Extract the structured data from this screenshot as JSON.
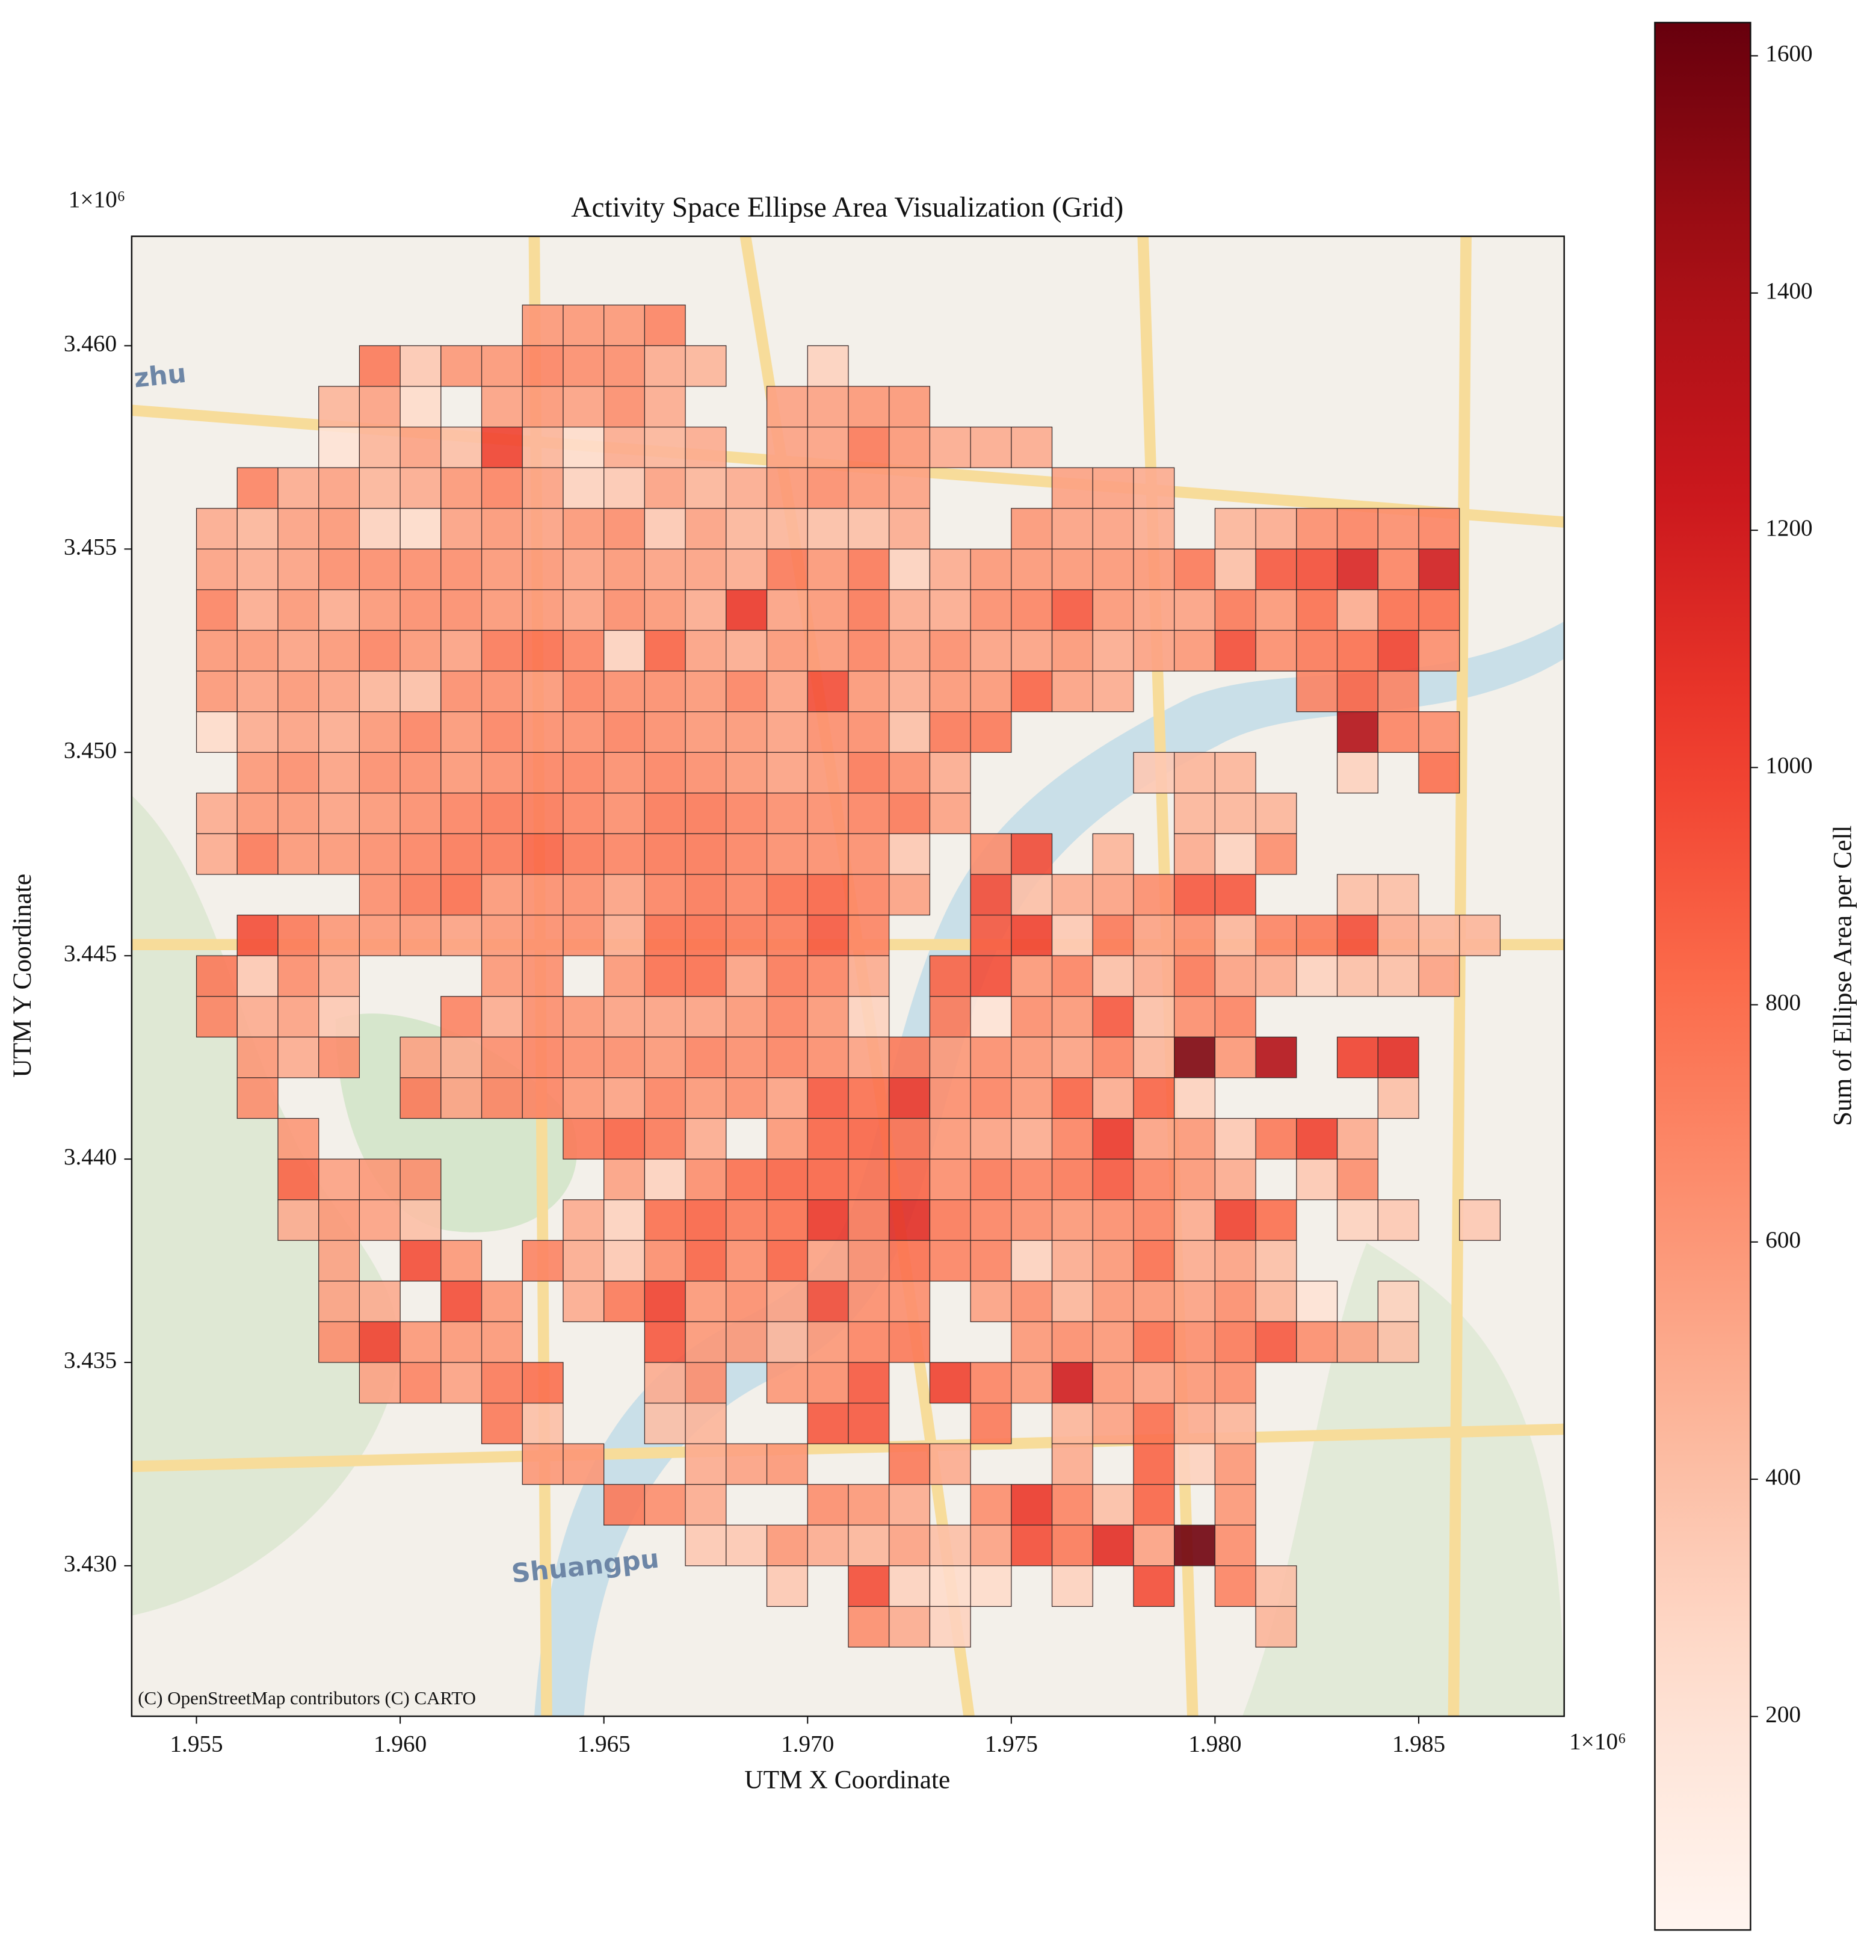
{
  "chart_data": {
    "type": "grid_heatmap",
    "title": "Activity Space Ellipse Area Visualization (Grid)",
    "x_label": "UTM X Coordinate",
    "y_label": "UTM Y Coordinate",
    "x_offset_label": "1×10⁶",
    "y_offset_label": "1×10⁶",
    "attribution": "(C) OpenStreetMap contributors (C) CARTO",
    "basemap_labels": [
      "Shuangpu",
      "zhu"
    ],
    "colorbar_label": "Sum of Ellipse Area per Cell",
    "colormap": "Reds",
    "clim": [
      20,
      1628
    ],
    "cticks": [
      200,
      400,
      600,
      800,
      1000,
      1200,
      1400,
      1600
    ],
    "xlim": [
      1953410,
      1988570
    ],
    "ylim": [
      3426300,
      3462690
    ],
    "xticks": [
      {
        "value": 1955000,
        "label": "1.955"
      },
      {
        "value": 1960000,
        "label": "1.960"
      },
      {
        "value": 1965000,
        "label": "1.965"
      },
      {
        "value": 1970000,
        "label": "1.970"
      },
      {
        "value": 1975000,
        "label": "1.975"
      },
      {
        "value": 1980000,
        "label": "1.980"
      },
      {
        "value": 1985000,
        "label": "1.985"
      }
    ],
    "yticks": [
      {
        "value": 3430000,
        "label": "3.430"
      },
      {
        "value": 3435000,
        "label": "3.435"
      },
      {
        "value": 3440000,
        "label": "3.440"
      },
      {
        "value": 3445000,
        "label": "3.445"
      },
      {
        "value": 3450000,
        "label": "3.450"
      },
      {
        "value": 3455000,
        "label": "3.455"
      },
      {
        "value": 3460000,
        "label": "3.460"
      }
    ],
    "x_edges": [
      1955000,
      1956000,
      1957000,
      1958000,
      1959000,
      1960000,
      1961000,
      1962000,
      1963000,
      1964000,
      1965000,
      1966000,
      1967000,
      1968000,
      1969000,
      1970000,
      1971000,
      1972000,
      1973000,
      1974000,
      1975000,
      1976000,
      1977000,
      1978000,
      1979000,
      1980000,
      1981000,
      1982000,
      1983000,
      1984000,
      1985000,
      1986000,
      1987000
    ],
    "y_edges": [
      3461000,
      3460000,
      3459000,
      3458000,
      3457000,
      3456000,
      3455000,
      3454000,
      3453000,
      3452000,
      3451000,
      3450000,
      3449000,
      3448000,
      3447000,
      3446000,
      3445000,
      3444000,
      3443000,
      3442000,
      3441000,
      3440000,
      3439000,
      3438000,
      3437000,
      3436000,
      3435000,
      3434000,
      3433000,
      3432000,
      3431000,
      3430000,
      3429000,
      3428000
    ],
    "values": [
      [
        null,
        null,
        null,
        null,
        null,
        null,
        null,
        null,
        600,
        600,
        600,
        700,
        null,
        null,
        null,
        null,
        null,
        null,
        null,
        null,
        null,
        null,
        null,
        null,
        null,
        null,
        null,
        null,
        null,
        null,
        null,
        null
      ],
      [
        null,
        null,
        null,
        null,
        750,
        350,
        600,
        600,
        700,
        650,
        650,
        500,
        450,
        null,
        null,
        300,
        null,
        null,
        null,
        null,
        null,
        null,
        null,
        null,
        null,
        null,
        null,
        null,
        null,
        null,
        null,
        null
      ],
      [
        null,
        null,
        null,
        450,
        550,
        250,
        null,
        550,
        600,
        550,
        650,
        500,
        null,
        null,
        550,
        550,
        600,
        600,
        null,
        null,
        null,
        null,
        null,
        null,
        null,
        null,
        null,
        null,
        null,
        null,
        null,
        null
      ],
      [
        null,
        null,
        null,
        200,
        450,
        550,
        400,
        1000,
        450,
        250,
        500,
        450,
        500,
        null,
        550,
        550,
        750,
        600,
        500,
        500,
        500,
        null,
        null,
        null,
        null,
        null,
        null,
        null,
        null,
        null,
        null,
        null
      ],
      [
        null,
        700,
        500,
        550,
        450,
        500,
        600,
        700,
        550,
        300,
        350,
        550,
        450,
        500,
        600,
        650,
        600,
        550,
        null,
        null,
        null,
        550,
        550,
        500,
        null,
        null,
        null,
        null,
        null,
        null,
        null,
        null
      ],
      [
        500,
        450,
        550,
        600,
        300,
        250,
        550,
        600,
        550,
        600,
        650,
        350,
        550,
        450,
        450,
        400,
        400,
        500,
        null,
        null,
        600,
        550,
        550,
        500,
        null,
        450,
        500,
        650,
        700,
        650,
        700,
        null
      ],
      [
        550,
        500,
        550,
        650,
        650,
        650,
        650,
        600,
        600,
        550,
        600,
        550,
        550,
        500,
        750,
        600,
        750,
        300,
        500,
        600,
        600,
        600,
        600,
        600,
        750,
        400,
        900,
        950,
        1150,
        700,
        1200,
        null
      ],
      [
        700,
        500,
        600,
        500,
        600,
        650,
        650,
        600,
        600,
        550,
        650,
        600,
        500,
        1050,
        550,
        600,
        750,
        500,
        500,
        650,
        700,
        900,
        600,
        550,
        550,
        750,
        600,
        800,
        500,
        800,
        800,
        null
      ],
      [
        600,
        600,
        550,
        600,
        700,
        600,
        550,
        750,
        800,
        700,
        300,
        850,
        550,
        500,
        600,
        600,
        700,
        550,
        650,
        550,
        550,
        600,
        500,
        550,
        600,
        950,
        650,
        750,
        800,
        1000,
        650,
        null
      ],
      [
        600,
        550,
        600,
        550,
        450,
        400,
        650,
        650,
        600,
        700,
        650,
        650,
        600,
        700,
        550,
        950,
        600,
        500,
        600,
        600,
        850,
        550,
        500,
        null,
        null,
        null,
        null,
        700,
        850,
        700,
        null,
        null
      ],
      [
        250,
        500,
        550,
        500,
        600,
        700,
        600,
        700,
        650,
        650,
        700,
        650,
        600,
        600,
        550,
        650,
        650,
        400,
        750,
        750,
        null,
        null,
        null,
        null,
        null,
        null,
        null,
        null,
        1350,
        700,
        650,
        null
      ],
      [
        null,
        600,
        650,
        550,
        650,
        650,
        600,
        650,
        700,
        700,
        650,
        700,
        650,
        600,
        550,
        600,
        750,
        650,
        500,
        null,
        null,
        null,
        null,
        350,
        450,
        450,
        null,
        null,
        300,
        null,
        800,
        null
      ],
      [
        500,
        600,
        600,
        550,
        600,
        650,
        700,
        750,
        750,
        700,
        650,
        750,
        750,
        700,
        650,
        650,
        700,
        750,
        550,
        null,
        null,
        null,
        null,
        null,
        450,
        450,
        450,
        null,
        null,
        null,
        null,
        null
      ],
      [
        500,
        750,
        600,
        600,
        650,
        700,
        750,
        750,
        850,
        750,
        700,
        750,
        750,
        700,
        650,
        650,
        650,
        350,
        null,
        650,
        950,
        null,
        450,
        null,
        500,
        300,
        650,
        null,
        null,
        null,
        null,
        null
      ],
      [
        null,
        null,
        null,
        null,
        650,
        750,
        800,
        600,
        650,
        650,
        550,
        700,
        750,
        700,
        800,
        850,
        700,
        550,
        null,
        950,
        400,
        500,
        550,
        650,
        900,
        900,
        null,
        null,
        400,
        400,
        null,
        null
      ],
      [
        null,
        950,
        750,
        600,
        600,
        600,
        550,
        600,
        650,
        650,
        500,
        800,
        800,
        750,
        750,
        900,
        700,
        null,
        null,
        900,
        1000,
        350,
        750,
        550,
        650,
        450,
        700,
        750,
        950,
        500,
        450,
        450
      ],
      [
        750,
        350,
        650,
        500,
        null,
        null,
        null,
        600,
        650,
        null,
        600,
        800,
        800,
        550,
        750,
        700,
        500,
        null,
        850,
        950,
        600,
        700,
        400,
        500,
        750,
        550,
        500,
        300,
        400,
        400,
        550,
        null
      ],
      [
        700,
        500,
        550,
        350,
        null,
        null,
        700,
        500,
        650,
        600,
        550,
        550,
        550,
        600,
        700,
        600,
        300,
        null,
        750,
        200,
        650,
        600,
        900,
        400,
        650,
        700,
        null,
        null,
        null,
        null,
        null,
        null
      ],
      [
        null,
        600,
        500,
        650,
        null,
        550,
        500,
        650,
        700,
        650,
        650,
        600,
        700,
        650,
        700,
        650,
        550,
        750,
        600,
        650,
        600,
        550,
        700,
        450,
        1550,
        600,
        1350,
        null,
        1000,
        1100,
        null,
        null
      ],
      [
        null,
        650,
        null,
        null,
        null,
        750,
        550,
        700,
        700,
        600,
        550,
        700,
        600,
        650,
        550,
        900,
        800,
        1050,
        650,
        700,
        600,
        850,
        500,
        850,
        300,
        null,
        null,
        null,
        null,
        400,
        null,
        null
      ],
      [
        null,
        null,
        600,
        null,
        null,
        null,
        null,
        null,
        null,
        750,
        850,
        750,
        500,
        null,
        600,
        850,
        850,
        800,
        600,
        550,
        500,
        700,
        1050,
        550,
        600,
        350,
        750,
        1000,
        500,
        null,
        null,
        null
      ],
      [
        null,
        null,
        850,
        550,
        600,
        650,
        null,
        null,
        null,
        null,
        550,
        300,
        650,
        800,
        850,
        850,
        800,
        850,
        650,
        750,
        700,
        750,
        900,
        700,
        600,
        500,
        null,
        350,
        650,
        null,
        null,
        null
      ],
      [
        null,
        null,
        500,
        600,
        550,
        400,
        null,
        null,
        null,
        500,
        300,
        800,
        850,
        750,
        800,
        1050,
        750,
        1100,
        750,
        700,
        650,
        600,
        650,
        700,
        500,
        1000,
        800,
        null,
        300,
        350,
        null,
        350
      ],
      [
        null,
        null,
        null,
        550,
        null,
        950,
        600,
        null,
        700,
        500,
        350,
        650,
        850,
        650,
        850,
        550,
        650,
        800,
        700,
        700,
        300,
        500,
        600,
        800,
        500,
        550,
        400,
        null,
        null,
        null,
        null,
        null
      ],
      [
        null,
        null,
        null,
        550,
        500,
        null,
        950,
        600,
        null,
        500,
        750,
        1000,
        600,
        650,
        550,
        950,
        650,
        650,
        null,
        550,
        650,
        450,
        600,
        600,
        550,
        650,
        450,
        200,
        null,
        300,
        null,
        null
      ],
      [
        null,
        null,
        null,
        650,
        1000,
        600,
        600,
        600,
        null,
        null,
        null,
        900,
        600,
        600,
        450,
        600,
        700,
        750,
        null,
        null,
        600,
        650,
        600,
        800,
        650,
        750,
        900,
        650,
        550,
        400,
        null,
        null
      ],
      [
        null,
        null,
        null,
        null,
        550,
        700,
        550,
        750,
        800,
        null,
        null,
        500,
        650,
        null,
        600,
        650,
        900,
        null,
        1000,
        700,
        600,
        1200,
        600,
        550,
        600,
        650,
        null,
        null,
        null,
        null,
        null,
        null
      ],
      [
        null,
        null,
        null,
        null,
        null,
        null,
        null,
        750,
        400,
        null,
        null,
        400,
        450,
        null,
        null,
        900,
        900,
        null,
        null,
        750,
        null,
        450,
        550,
        800,
        500,
        450,
        null,
        null,
        null,
        null,
        null,
        null
      ],
      [
        null,
        null,
        null,
        null,
        null,
        null,
        null,
        null,
        600,
        600,
        null,
        null,
        500,
        550,
        600,
        null,
        null,
        750,
        500,
        null,
        null,
        500,
        null,
        850,
        300,
        600,
        null,
        null,
        null,
        null,
        null,
        null
      ],
      [
        null,
        null,
        null,
        null,
        null,
        null,
        null,
        null,
        null,
        null,
        750,
        650,
        500,
        null,
        null,
        650,
        600,
        500,
        null,
        650,
        1050,
        700,
        400,
        850,
        null,
        600,
        null,
        null,
        null,
        null,
        null,
        null
      ],
      [
        null,
        null,
        null,
        null,
        null,
        null,
        null,
        null,
        null,
        null,
        null,
        null,
        350,
        350,
        600,
        500,
        450,
        550,
        400,
        550,
        950,
        750,
        1100,
        550,
        1600,
        650,
        null,
        null,
        null,
        null,
        null,
        null
      ],
      [
        null,
        null,
        null,
        null,
        null,
        null,
        null,
        null,
        null,
        null,
        null,
        null,
        null,
        null,
        350,
        null,
        950,
        300,
        250,
        250,
        null,
        300,
        null,
        950,
        null,
        700,
        400,
        null,
        null,
        null,
        null,
        null
      ],
      [
        null,
        null,
        null,
        null,
        null,
        null,
        null,
        null,
        null,
        null,
        null,
        null,
        null,
        null,
        null,
        null,
        650,
        500,
        300,
        null,
        null,
        null,
        null,
        null,
        null,
        null,
        450,
        null,
        null,
        null,
        null,
        null
      ]
    ]
  }
}
